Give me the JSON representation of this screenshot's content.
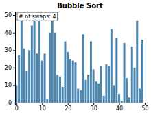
{
  "chart_data": {
    "type": "bar",
    "title": "Bubble Sort",
    "annotation": "# of swaps: 4",
    "color": "#4a86b0",
    "values": [
      10,
      27,
      47,
      31,
      18,
      30,
      44,
      49,
      28,
      50,
      24,
      28,
      2,
      40,
      48,
      40,
      16,
      15,
      9,
      35,
      29,
      25,
      24,
      23,
      8,
      7,
      39,
      13,
      16,
      35,
      19,
      12,
      11,
      21,
      4,
      22,
      21,
      42,
      10,
      37,
      5,
      1,
      34,
      14,
      3,
      32,
      20,
      47,
      8,
      36
    ],
    "xlim": [
      -0.5,
      50
    ],
    "ylim": [
      0,
      52
    ],
    "xticks": [
      0,
      10,
      20,
      30,
      40,
      50
    ],
    "yticks": [
      0,
      10,
      20,
      30,
      40,
      50
    ],
    "grid": false
  }
}
